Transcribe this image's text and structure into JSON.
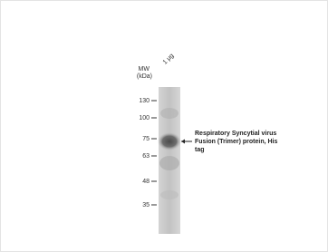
{
  "figure": {
    "lane_label": "1 μg",
    "mw_label": "MW",
    "unit_label": "(kDa)",
    "markers": [
      "130",
      "100",
      "75",
      "63",
      "48",
      "35"
    ],
    "annotation": [
      "Respiratory  Syncytial virus",
      "Fusion (Trimer) protein, His",
      "tag"
    ]
  }
}
